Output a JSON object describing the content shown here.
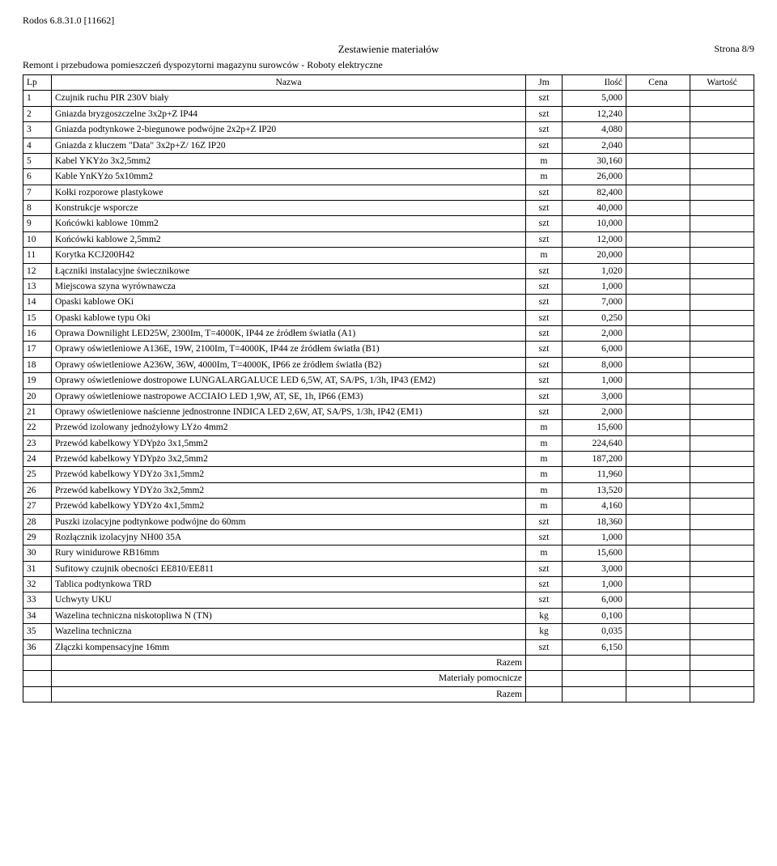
{
  "header": {
    "doc_id": "Rodos 6.8.31.0 [11662]",
    "title": "Zestawienie materiałów",
    "page": "Strona 8/9",
    "subtitle": "Remont i przebudowa pomieszczeń  dyspozytorni magazynu surowców - Roboty elektryczne"
  },
  "columns": {
    "lp": "Lp",
    "name": "Nazwa",
    "jm": "Jm",
    "il": "Ilość",
    "cena": "Cena",
    "wart": "Wartość"
  },
  "rows": [
    {
      "lp": "1",
      "name": "Czujnik ruchu PIR 230V biały",
      "jm": "szt",
      "il": "5,000"
    },
    {
      "lp": "2",
      "name": "Gniazda bryzgoszczelne 3x2p+Z IP44",
      "jm": "szt",
      "il": "12,240"
    },
    {
      "lp": "3",
      "name": "Gniazda podtynkowe 2-biegunowe podwójne 2x2p+Z IP20",
      "jm": "szt",
      "il": "4,080"
    },
    {
      "lp": "4",
      "name": "Gniazda z kluczem \"Data\" 3x2p+Z/ 16Z IP20",
      "jm": "szt",
      "il": "2,040"
    },
    {
      "lp": "5",
      "name": "Kabel YKYżo 3x2,5mm2",
      "jm": "m",
      "il": "30,160"
    },
    {
      "lp": "6",
      "name": "Kable YnKYżo 5x10mm2",
      "jm": "m",
      "il": "26,000"
    },
    {
      "lp": "7",
      "name": "Kołki rozporowe plastykowe",
      "jm": "szt",
      "il": "82,400"
    },
    {
      "lp": "8",
      "name": "Konstrukcje wsporcze",
      "jm": "szt",
      "il": "40,000"
    },
    {
      "lp": "9",
      "name": "Końcówki kablowe 10mm2",
      "jm": "szt",
      "il": "10,000"
    },
    {
      "lp": "10",
      "name": "Końcówki kablowe 2,5mm2",
      "jm": "szt",
      "il": "12,000"
    },
    {
      "lp": "11",
      "name": "Korytka KCJ200H42",
      "jm": "m",
      "il": "20,000"
    },
    {
      "lp": "12",
      "name": "Łączniki instalacyjne świecznikowe",
      "jm": "szt",
      "il": "1,020"
    },
    {
      "lp": "13",
      "name": "Miejscowa szyna wyrównawcza",
      "jm": "szt",
      "il": "1,000"
    },
    {
      "lp": "14",
      "name": "Opaski kablowe OKi",
      "jm": "szt",
      "il": "7,000"
    },
    {
      "lp": "15",
      "name": "Opaski kablowe typu Oki",
      "jm": "szt",
      "il": "0,250"
    },
    {
      "lp": "16",
      "name": "Oprawa Downilight LED25W, 2300Im, T=4000K, IP44 ze źródłem światła (A1)",
      "jm": "szt",
      "il": "2,000"
    },
    {
      "lp": "17",
      "name": "Oprawy oświetleniowe A136E, 19W, 2100Im, T=4000K, IP44 ze źródłem światła (B1)",
      "jm": "szt",
      "il": "6,000"
    },
    {
      "lp": "18",
      "name": "Oprawy oświetleniowe A236W, 36W, 4000Im, T=4000K, IP66 ze źródłem światła (B2)",
      "jm": "szt",
      "il": "8,000"
    },
    {
      "lp": "19",
      "name": "Oprawy oświetleniowe dostropowe LUNGALARGALUCE LED 6,5W, AT, SA/PS, 1/3h, IP43 (EM2)",
      "jm": "szt",
      "il": "1,000"
    },
    {
      "lp": "20",
      "name": "Oprawy oświetleniowe nastropowe ACCIAIO LED 1,9W, AT, SE, 1h, IP66 (EM3)",
      "jm": "szt",
      "il": "3,000"
    },
    {
      "lp": "21",
      "name": "Oprawy oświetleniowe naścienne jednostronne INDICA LED 2,6W, AT, SA/PS, 1/3h, IP42 (EM1)",
      "jm": "szt",
      "il": "2,000"
    },
    {
      "lp": "22",
      "name": "Przewód izolowany jednożyłowy  LYżo 4mm2",
      "jm": "m",
      "il": "15,600"
    },
    {
      "lp": "23",
      "name": "Przewód kabelkowy YDYpżo 3x1,5mm2",
      "jm": "m",
      "il": "224,640"
    },
    {
      "lp": "24",
      "name": "Przewód kabelkowy YDYpżo 3x2,5mm2",
      "jm": "m",
      "il": "187,200"
    },
    {
      "lp": "25",
      "name": "Przewód kabelkowy YDYżo 3x1,5mm2",
      "jm": "m",
      "il": "11,960"
    },
    {
      "lp": "26",
      "name": "Przewód kabelkowy YDYżo 3x2,5mm2",
      "jm": "m",
      "il": "13,520"
    },
    {
      "lp": "27",
      "name": "Przewód kabelkowy YDYżo 4x1,5mm2",
      "jm": "m",
      "il": "4,160"
    },
    {
      "lp": "28",
      "name": "Puszki izolacyjne podtynkowe podwójne do 60mm",
      "jm": "szt",
      "il": "18,360"
    },
    {
      "lp": "29",
      "name": "Rozłącznik izolacyjny NH00 35A",
      "jm": "szt",
      "il": "1,000"
    },
    {
      "lp": "30",
      "name": "Rury winidurowe RB16mm",
      "jm": "m",
      "il": "15,600"
    },
    {
      "lp": "31",
      "name": "Sufitowy czujnik obecności EE810/EE811",
      "jm": "szt",
      "il": "3,000"
    },
    {
      "lp": "32",
      "name": "Tablica podtynkowa TRD",
      "jm": "szt",
      "il": "1,000"
    },
    {
      "lp": "33",
      "name": "Uchwyty UKU",
      "jm": "szt",
      "il": "6,000"
    },
    {
      "lp": "34",
      "name": "Wazelina techniczna niskotopliwa N (TN)",
      "jm": "kg",
      "il": "0,100"
    },
    {
      "lp": "35",
      "name": "Wazelina techniczna",
      "jm": "kg",
      "il": "0,035"
    },
    {
      "lp": "36",
      "name": "Złączki kompensacyjne 16mm",
      "jm": "szt",
      "il": "6,150"
    }
  ],
  "summary": {
    "razem1": "Razem",
    "pomoc": "Materiały pomocnicze",
    "razem2": "Razem"
  }
}
